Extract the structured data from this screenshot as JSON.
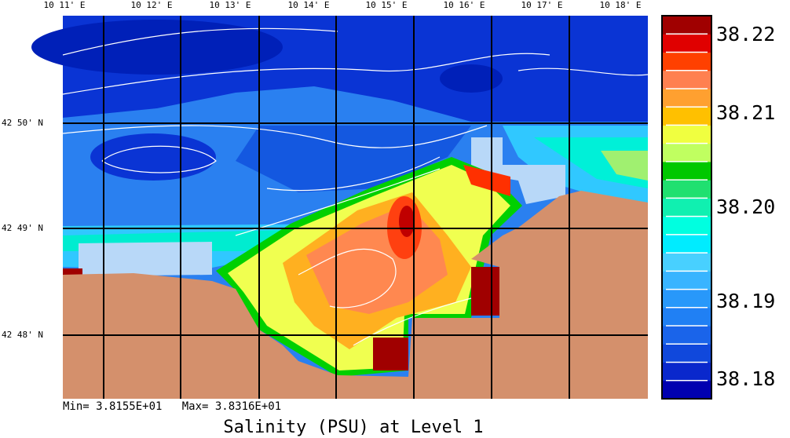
{
  "map": {
    "longitude_labels": [
      "10 11' E",
      "10 12' E",
      "10 13' E",
      "10 14' E",
      "10 15' E",
      "10 16' E",
      "10 17' E",
      "10 18' E"
    ],
    "latitude_labels": [
      "42 50' N",
      "42 49' N",
      "42 48' N"
    ],
    "colorbar_labels": [
      "38.22",
      "38.21",
      "38.20",
      "38.19",
      "38.18"
    ],
    "stats": "Min= 3.8155E+01   Max= 3.8316E+01",
    "title": "Salinity (PSU) at Level 1"
  }
}
